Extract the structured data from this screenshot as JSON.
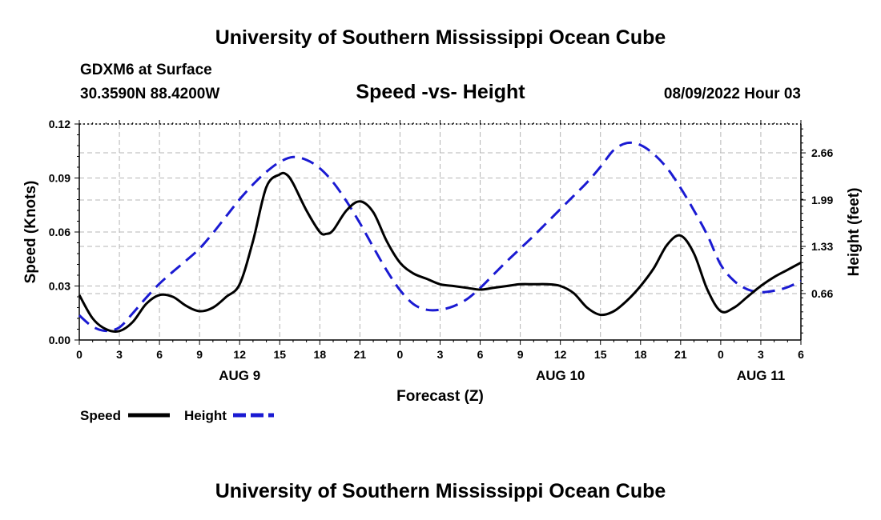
{
  "header": {
    "title": "University of Southern Mississippi Ocean Cube",
    "station": "GDXM6 at Surface",
    "coords": "30.3590N  88.4200W",
    "subtitle": "Speed -vs- Height",
    "datetime": "08/09/2022 Hour 03"
  },
  "footer": {
    "title": "University of Southern Mississippi Ocean Cube"
  },
  "colors": {
    "speed": "#000000",
    "height": "#1a1ad2",
    "grid": "#b4b4b4"
  },
  "chart_data": {
    "type": "line",
    "title": "Speed -vs- Height",
    "xlabel": "Forecast (Z)",
    "ylabel_left": "Speed (Knots)",
    "ylabel_right": "Height (feet)",
    "x_ticks": [
      "0",
      "3",
      "6",
      "9",
      "12",
      "15",
      "18",
      "21",
      "0",
      "3",
      "6",
      "9",
      "12",
      "15",
      "18",
      "21",
      "0",
      "3",
      "6"
    ],
    "x_tick_hours": [
      0,
      3,
      6,
      9,
      12,
      15,
      18,
      21,
      24,
      27,
      30,
      33,
      36,
      39,
      42,
      45,
      48,
      51,
      54
    ],
    "day_labels": [
      {
        "label": "AUG 9",
        "hour": 12
      },
      {
        "label": "AUG 10",
        "hour": 36
      },
      {
        "label": "AUG 11",
        "hour": 51
      }
    ],
    "xlim": [
      0,
      54
    ],
    "ylim_left": [
      0,
      0.12
    ],
    "y_ticks_left": [
      "0.00",
      "0.03",
      "0.06",
      "0.09",
      "0.12"
    ],
    "y_tick_values_left": [
      0,
      0.03,
      0.06,
      0.09,
      0.12
    ],
    "ylim_right": [
      0,
      3.07
    ],
    "y_ticks_right": [
      "0.66",
      "1.33",
      "1.99",
      "2.66"
    ],
    "y_tick_values_right": [
      0.66,
      1.33,
      1.99,
      2.66
    ],
    "grid": true,
    "series": [
      {
        "name": "Speed",
        "axis": "left",
        "style": "solid",
        "x": [
          0,
          1,
          2,
          3,
          4,
          5,
          6,
          7,
          8,
          9,
          10,
          11,
          12,
          13,
          14,
          15,
          15.5,
          16,
          17,
          18,
          18.5,
          19,
          20,
          21,
          22,
          23,
          24,
          25,
          26,
          27,
          28,
          29,
          30,
          31,
          32,
          33,
          34,
          35,
          36,
          37,
          38,
          39,
          40,
          41,
          42,
          43,
          44,
          45,
          46,
          47,
          48,
          49,
          50,
          51,
          52,
          53,
          54
        ],
        "values": [
          0.025,
          0.012,
          0.006,
          0.005,
          0.01,
          0.02,
          0.025,
          0.024,
          0.019,
          0.016,
          0.018,
          0.024,
          0.031,
          0.055,
          0.085,
          0.092,
          0.092,
          0.087,
          0.072,
          0.06,
          0.059,
          0.061,
          0.072,
          0.077,
          0.071,
          0.055,
          0.043,
          0.037,
          0.034,
          0.031,
          0.03,
          0.029,
          0.028,
          0.029,
          0.03,
          0.031,
          0.031,
          0.031,
          0.03,
          0.026,
          0.018,
          0.014,
          0.016,
          0.022,
          0.03,
          0.04,
          0.053,
          0.058,
          0.048,
          0.028,
          0.016,
          0.018,
          0.024,
          0.03,
          0.035,
          0.039,
          0.043
        ]
      },
      {
        "name": "Height",
        "axis": "right",
        "style": "dashed",
        "x": [
          0,
          1,
          2,
          3,
          4,
          5,
          6,
          7,
          8,
          9,
          10,
          11,
          12,
          13,
          14,
          15,
          16,
          17,
          18,
          19,
          20,
          21,
          22,
          23,
          24,
          25,
          26,
          27,
          28,
          29,
          30,
          31,
          32,
          33,
          34,
          35,
          36,
          37,
          38,
          39,
          40,
          41,
          42,
          43,
          44,
          45,
          46,
          47,
          48,
          49,
          50,
          51,
          52,
          53,
          54
        ],
        "values": [
          0.35,
          0.19,
          0.13,
          0.18,
          0.38,
          0.6,
          0.8,
          0.97,
          1.13,
          1.3,
          1.52,
          1.76,
          2.0,
          2.21,
          2.39,
          2.53,
          2.6,
          2.56,
          2.44,
          2.24,
          1.97,
          1.66,
          1.32,
          0.99,
          0.71,
          0.51,
          0.43,
          0.43,
          0.48,
          0.58,
          0.74,
          0.93,
          1.12,
          1.3,
          1.48,
          1.67,
          1.86,
          2.05,
          2.24,
          2.46,
          2.7,
          2.8,
          2.77,
          2.64,
          2.44,
          2.16,
          1.84,
          1.49,
          1.07,
          0.84,
          0.72,
          0.68,
          0.7,
          0.75,
          0.84
        ]
      }
    ],
    "legend": [
      {
        "label": "Speed",
        "style": "solid"
      },
      {
        "label": "Height",
        "style": "dashed"
      }
    ]
  }
}
